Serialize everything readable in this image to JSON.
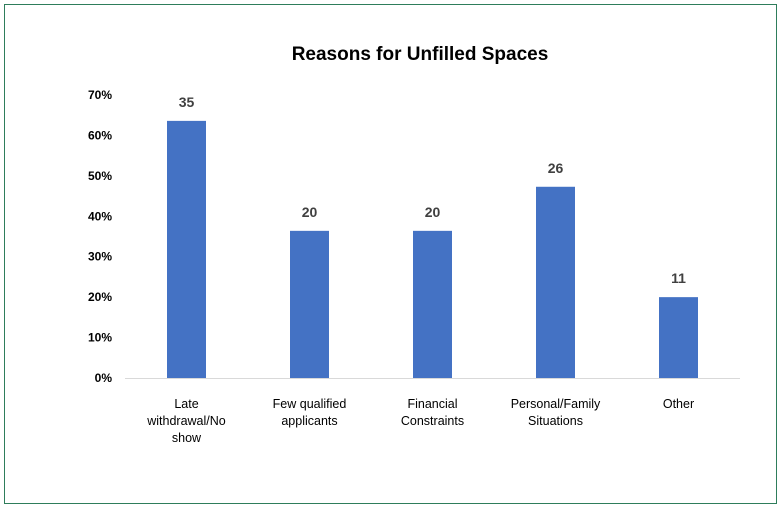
{
  "chart_data": {
    "type": "bar",
    "title": "Reasons for Unfilled Spaces",
    "xlabel": "",
    "ylabel": "",
    "categories": [
      [
        "Late",
        "withdrawal/No",
        "show"
      ],
      [
        "Few qualified",
        "applicants"
      ],
      [
        "Financial",
        "Constraints"
      ],
      [
        "Personal/Family",
        "Situations"
      ],
      [
        "Other"
      ]
    ],
    "values": [
      0.636,
      0.364,
      0.364,
      0.473,
      0.2
    ],
    "data_labels": [
      "35",
      "20",
      "20",
      "26",
      "11"
    ],
    "ylim": [
      0,
      0.7
    ],
    "yticks": [
      "0%",
      "10%",
      "20%",
      "30%",
      "40%",
      "50%",
      "60%",
      "70%"
    ],
    "grid": false,
    "legend": "none",
    "colors": {
      "bar": "#4472c4",
      "axis": "#d9d9d9",
      "border": "#2e7d5b"
    }
  }
}
